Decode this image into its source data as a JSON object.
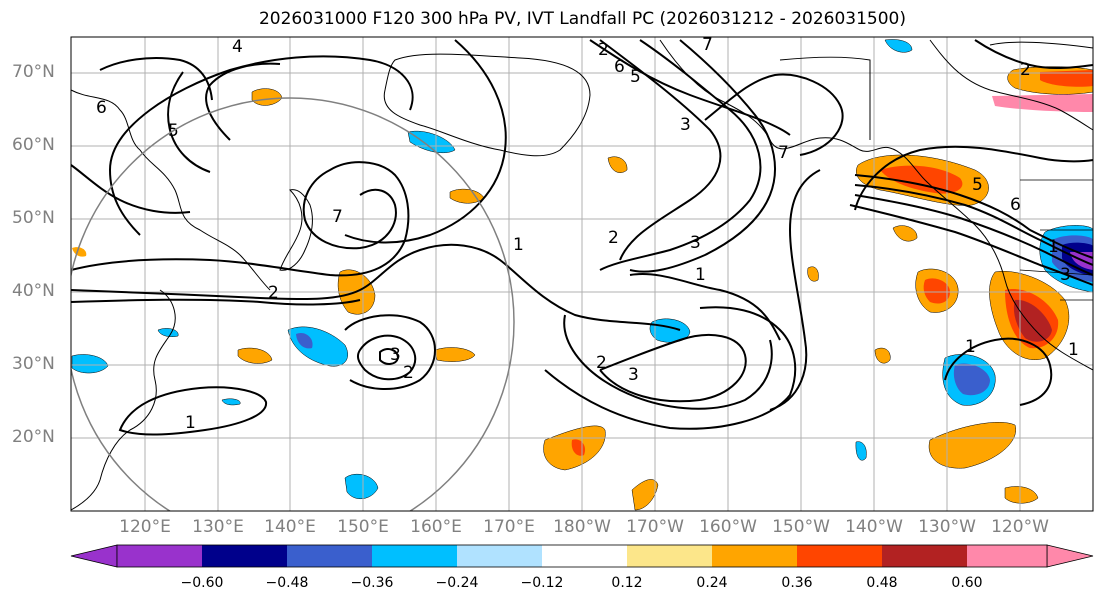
{
  "title": "2026031000 F120 300 hPa PV, IVT Landfall PC (2026031212 - 2026031500)",
  "lat_labels": [
    "70°N",
    "60°N",
    "50°N",
    "40°N",
    "30°N",
    "20°N"
  ],
  "lon_labels": [
    "120°E",
    "130°E",
    "140°E",
    "150°E",
    "160°E",
    "170°E",
    "180°W",
    "170°W",
    "160°W",
    "150°W",
    "140°W",
    "130°W",
    "120°W"
  ],
  "colorbar": {
    "ticks": [
      "−0.60",
      "−0.48",
      "−0.36",
      "−0.24",
      "−0.12",
      "0.12",
      "0.24",
      "0.36",
      "0.48",
      "0.60"
    ],
    "colors": [
      "#9932cc",
      "#00008b",
      "#3a5fcd",
      "#00bfff",
      "#b0e2ff",
      "#ffffff",
      "#fce68a",
      "#ffa500",
      "#ff4500",
      "#b22222",
      "#ff88aa"
    ]
  },
  "contour_labels": [
    "4",
    "5",
    "6",
    "7",
    "1",
    "2",
    "3",
    "2",
    "1",
    "2",
    "3",
    "3",
    "2",
    "1",
    "2",
    "3",
    "1",
    "7",
    "5",
    "6",
    "5",
    "6",
    "7",
    "1",
    "2",
    "3",
    "1"
  ],
  "colors": {
    "grid": "#b0b0b0",
    "coast": "#000000",
    "contour": "#000000",
    "circle": "#808080",
    "tick_label": "#808080"
  }
}
